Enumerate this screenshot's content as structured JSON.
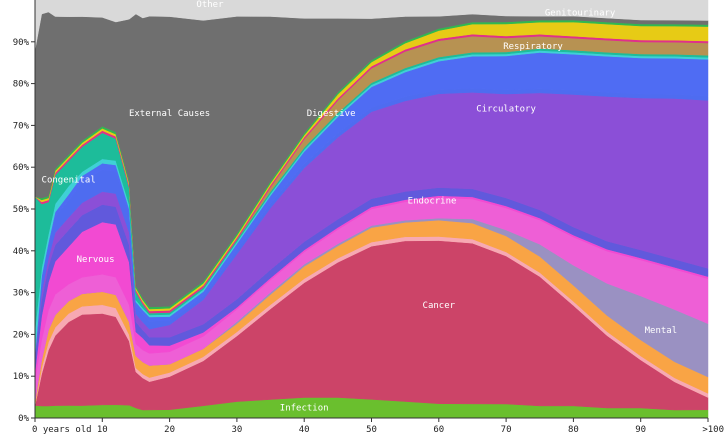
{
  "chart_data": {
    "type": "area",
    "stacked": true,
    "normalized": true,
    "x": [
      0,
      1,
      2,
      3,
      5,
      7,
      10,
      12,
      14,
      15,
      16,
      17,
      20,
      25,
      30,
      35,
      40,
      45,
      50,
      55,
      60,
      65,
      70,
      75,
      80,
      85,
      90,
      95,
      100
    ],
    "x_tick_labels": [
      "0 years old",
      "10",
      "20",
      "30",
      "40",
      "50",
      "60",
      "70",
      "80",
      "90",
      ">100"
    ],
    "x_tick_values": [
      0,
      10,
      20,
      30,
      40,
      50,
      60,
      70,
      80,
      90,
      100
    ],
    "y_tick_labels": [
      "0%",
      "10%",
      "20%",
      "30%",
      "40%",
      "50%",
      "60%",
      "70%",
      "80%",
      "90%"
    ],
    "y_tick_values": [
      0,
      10,
      20,
      30,
      40,
      50,
      60,
      70,
      80,
      90
    ],
    "ylim": [
      0,
      100
    ],
    "xlim": [
      0,
      100
    ],
    "grid": false,
    "series": [
      {
        "name": "Infection",
        "color": "#6abf2e",
        "label_at": [
          40,
          2.5
        ],
        "values": [
          3,
          3,
          3,
          3,
          3,
          3,
          3,
          3,
          3,
          2.5,
          2,
          2,
          2,
          3,
          4,
          4.5,
          5,
          5,
          4.5,
          4,
          3.5,
          3.5,
          3.5,
          3,
          3,
          2.5,
          2.5,
          2,
          2
        ]
      },
      {
        "name": "Cancer",
        "color": "#cc4468",
        "label_at": [
          60,
          27
        ],
        "values": [
          0,
          8,
          14,
          17,
          20,
          22,
          21,
          20,
          15,
          9,
          8,
          7,
          8,
          11,
          16,
          22,
          28,
          33,
          37,
          39,
          40,
          40,
          37,
          32,
          25,
          18,
          12,
          7,
          3
        ]
      },
      {
        "name": "",
        "color": "#f7a9b3",
        "values": [
          0,
          1.5,
          2,
          2,
          2,
          2,
          2,
          2,
          1.5,
          1,
          1,
          1,
          1,
          1,
          1,
          1,
          1,
          1,
          1,
          1,
          1,
          1,
          1,
          1,
          1,
          1,
          1,
          1,
          1
        ]
      },
      {
        "name": "",
        "color": "#f9a445",
        "values": [
          1,
          2,
          3,
          3,
          3,
          3,
          3,
          3,
          3,
          3,
          3,
          3,
          2,
          2,
          2,
          2.5,
          3,
          3,
          3.5,
          3.5,
          4,
          4,
          4,
          4,
          4,
          4,
          4,
          4,
          4
        ]
      },
      {
        "name": "Mental",
        "color": "#9a91c2",
        "label_at": [
          93,
          21
        ],
        "values": [
          0,
          0,
          0,
          0,
          0,
          0,
          0,
          0,
          0,
          0,
          0,
          0,
          0,
          0,
          0.5,
          0.5,
          0.5,
          0.5,
          0.5,
          0.5,
          0.5,
          1,
          1.5,
          3,
          5,
          8,
          11,
          13,
          13
        ]
      },
      {
        "name": "Endocrine",
        "color": "#ee5fd6",
        "label_at": [
          59,
          52
        ],
        "values": [
          5,
          5,
          5,
          5,
          4,
          4,
          4,
          4,
          4,
          3,
          3,
          3,
          3,
          3,
          3,
          3,
          3,
          3.5,
          4,
          4.5,
          5,
          5,
          5.5,
          6,
          7,
          8,
          9,
          10,
          11
        ]
      },
      {
        "name": "Nervous",
        "color": "#f24ad2",
        "label_at": [
          9,
          38
        ],
        "values": [
          2,
          6,
          7,
          8,
          9,
          11,
          12,
          12,
          10,
          3,
          3,
          2,
          1.5,
          1,
          0.5,
          0.5,
          0.5,
          0.5,
          0.5,
          0.5,
          0.5,
          0.5,
          0.5,
          0.5,
          0.5,
          0.5,
          0.5,
          0.5,
          0.5
        ]
      },
      {
        "name": "",
        "color": "#6159dc",
        "values": [
          4,
          4,
          4,
          4,
          4,
          4,
          4,
          4,
          4,
          2.5,
          2,
          2,
          2,
          2,
          2,
          2,
          2,
          2,
          2,
          2,
          2,
          2,
          2,
          2,
          2,
          2,
          2,
          2,
          2
        ]
      },
      {
        "name": "Circulatory",
        "color": "#8b4fd7",
        "label_at": [
          70,
          74
        ],
        "values": [
          0,
          2,
          2,
          3,
          3,
          3,
          3,
          3,
          3,
          2,
          2,
          2,
          3,
          6,
          11,
          15,
          18,
          20,
          21,
          22,
          23,
          24,
          26,
          29,
          33,
          36,
          38,
          40,
          41
        ]
      },
      {
        "name": "",
        "color": "#4e6cf0",
        "values": [
          0,
          3,
          3,
          4,
          4,
          5,
          5,
          5,
          4,
          2,
          2,
          2,
          1,
          1,
          1,
          1,
          1,
          1,
          1,
          1,
          1,
          1,
          1,
          1,
          1,
          1,
          1,
          1,
          1
        ]
      },
      {
        "name": "Respiratory",
        "color": "#4f6cf3",
        "label_at": [
          74,
          89
        ],
        "values": [
          0,
          1,
          1,
          1,
          1.5,
          1.5,
          1.5,
          1.5,
          1.5,
          1,
          1,
          1,
          1,
          1,
          1.5,
          2,
          3,
          4,
          5,
          6,
          7,
          8,
          8.5,
          9,
          9,
          9,
          9,
          9,
          9
        ]
      },
      {
        "name": "",
        "color": "#3fd0d6",
        "values": [
          6,
          2,
          2,
          2,
          2,
          1,
          1,
          1,
          1,
          0.5,
          0.5,
          0.5,
          0.5,
          0.5,
          0.5,
          0.5,
          0.5,
          0.5,
          0.5,
          0.5,
          0.5,
          0.5,
          0.5,
          0.5,
          0.5,
          0.5,
          0.5,
          0.5,
          0.5
        ]
      },
      {
        "name": "Congenital",
        "color": "#1dbc9a",
        "label_at": [
          5,
          57
        ],
        "values": [
          32,
          16,
          8,
          7,
          6,
          6,
          6,
          5,
          4,
          2,
          1,
          0.5,
          0.5,
          0.5,
          0.5,
          0.5,
          0.5,
          0.5,
          0.5,
          0.5,
          0.5,
          0.5,
          0.5,
          0.5,
          0.5,
          0.5,
          0.5,
          0.5,
          0.5
        ]
      },
      {
        "name": "Digestive",
        "color": "#b79252",
        "label_at": [
          44,
          73
        ],
        "values": [
          0,
          0,
          0,
          0,
          0,
          0,
          0,
          0,
          0,
          0,
          0,
          0,
          0,
          0,
          0,
          1,
          2,
          3,
          3.5,
          4,
          4,
          4,
          3.5,
          3,
          3,
          3,
          3,
          3,
          3
        ]
      },
      {
        "name": "",
        "color": "#e0308a",
        "values": [
          0,
          0.5,
          0.5,
          0.5,
          0.5,
          0.5,
          0.5,
          0.5,
          0.5,
          0.5,
          0.5,
          0.5,
          0.5,
          0.5,
          0.5,
          0.5,
          0.5,
          0.5,
          0.5,
          0.5,
          0.5,
          0.5,
          0.5,
          0.5,
          0.5,
          0.5,
          0.5,
          0.5,
          0.5
        ]
      },
      {
        "name": "Genitourinary",
        "color": "#e7cb15",
        "label_at": [
          81,
          97
        ],
        "values": [
          0,
          0.5,
          0.5,
          0.5,
          0.5,
          0.5,
          0.5,
          0.5,
          0.5,
          0.5,
          0.5,
          0.5,
          0.5,
          0.5,
          0.5,
          0.5,
          0.5,
          1,
          1,
          1.5,
          2,
          2.5,
          3,
          3,
          3.5,
          3.5,
          3.5,
          3.5,
          3.5
        ]
      },
      {
        "name": "",
        "color": "#30b850",
        "values": [
          0,
          0.5,
          0.5,
          0.5,
          0.5,
          0.5,
          0.5,
          0.5,
          0.5,
          0.5,
          0.5,
          0.5,
          0.5,
          0.5,
          0.5,
          0.5,
          0.5,
          0.5,
          0.5,
          0.5,
          0.5,
          0.5,
          0.5,
          0.5,
          0.5,
          0.5,
          0.5,
          0.5,
          0.5
        ]
      },
      {
        "name": "External Causes",
        "color": "#6f6f6f",
        "label_at": [
          20,
          73
        ],
        "values": [
          35,
          46,
          46,
          37,
          33,
          30,
          25,
          25,
          38,
          68,
          70,
          72,
          70,
          64,
          53,
          40,
          28,
          18,
          10,
          6,
          3,
          2,
          1.5,
          1,
          1,
          1,
          1,
          1,
          1
        ]
      },
      {
        "name": "Other",
        "color": "#d9d9d9",
        "label_at": [
          26,
          99
        ],
        "values": [
          12,
          3.5,
          3,
          4,
          4,
          4,
          4,
          5,
          4.5,
          3.5,
          4.5,
          4,
          4,
          5,
          4,
          4,
          4.5,
          4.5,
          4.5,
          4,
          4,
          3.5,
          4,
          4,
          4,
          4.5,
          5,
          5,
          5
        ]
      }
    ]
  }
}
